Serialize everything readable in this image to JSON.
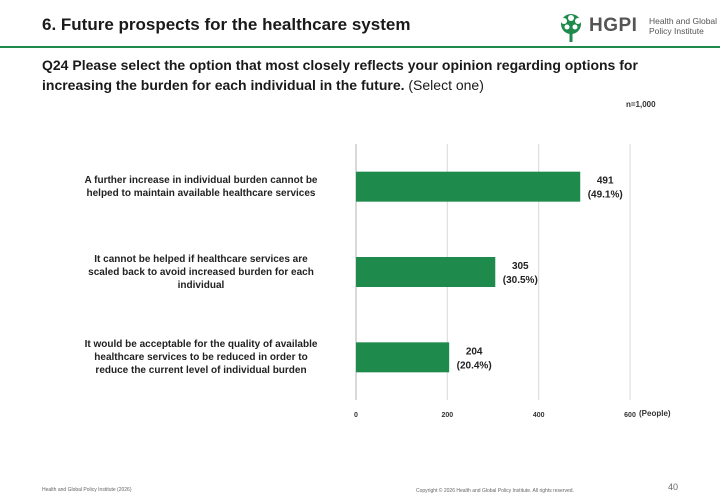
{
  "header": {
    "title": "6. Future prospects for the healthcare system",
    "logo_text": "HGPI",
    "logo_sub_line1": "Health and Global",
    "logo_sub_line2": "Policy Institute"
  },
  "question": {
    "bold": "Q24 Please select the option that most closely reflects your opinion regarding options for increasing the burden for each individual in the future.",
    "normal": "(Select one)"
  },
  "n_label": "n=1,000",
  "chart_data": {
    "type": "bar",
    "orientation": "horizontal",
    "categories": [
      [
        "A further increase in individual burden cannot be",
        "helped to maintain available healthcare services"
      ],
      [
        "It cannot be helped if healthcare services are",
        "scaled back to avoid increased burden for each",
        "individual"
      ],
      [
        "It would be acceptable for the quality of available",
        "healthcare services to be reduced in order to",
        "reduce the current level of individual burden"
      ]
    ],
    "values": [
      491,
      305,
      204
    ],
    "value_labels": [
      "491",
      "305",
      "204"
    ],
    "percent_labels": [
      "(49.1%)",
      "(30.5%)",
      "(20.4%)"
    ],
    "xlim": [
      0,
      600
    ],
    "ticks": [
      "0",
      "200",
      "400",
      "600"
    ],
    "xlabel": "(People)",
    "grid": true,
    "bar_color": "#1e8a4c"
  },
  "footer": {
    "left": "Health and Global Policy Institute (2026)",
    "center": "Copyright © 2026 Health and Global Policy Institute. All rights reserved.",
    "page": "40"
  }
}
